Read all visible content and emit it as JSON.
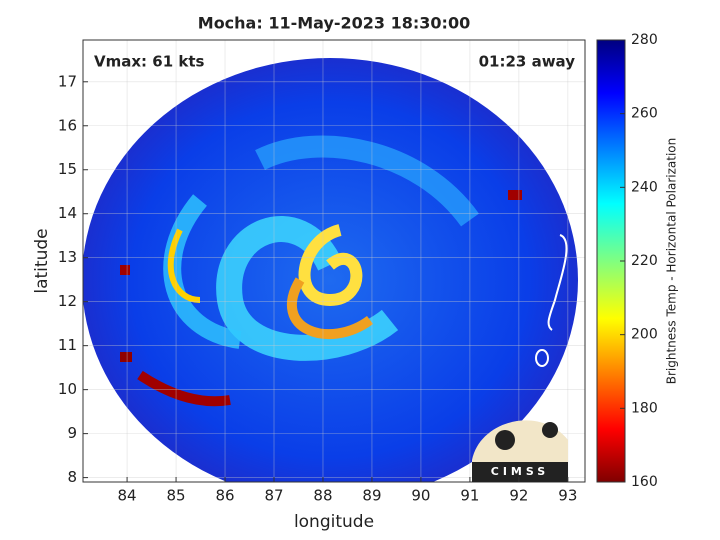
{
  "chart_data": {
    "type": "map",
    "title": "Mocha: 11-May-2023 18:30:00",
    "annotations": {
      "vmax": "Vmax: 61 kts",
      "time_away": "01:23 away"
    },
    "x_label": "longitude",
    "y_label": "latitude",
    "xlim": [
      83.1,
      93.35
    ],
    "ylim": [
      7.9,
      17.95
    ],
    "xticks": [
      84,
      85,
      86,
      87,
      88,
      89,
      90,
      91,
      92,
      93
    ],
    "yticks": [
      8,
      9,
      10,
      11,
      12,
      13,
      14,
      15,
      16,
      17
    ],
    "grid": true,
    "colorbar": {
      "label": "Brightness Temp - Horizontal Polarization",
      "lim": [
        160,
        280
      ],
      "ticks": [
        160,
        180,
        200,
        220,
        240,
        260,
        280
      ],
      "colormap": "jet"
    },
    "logo": "CIMSS"
  }
}
